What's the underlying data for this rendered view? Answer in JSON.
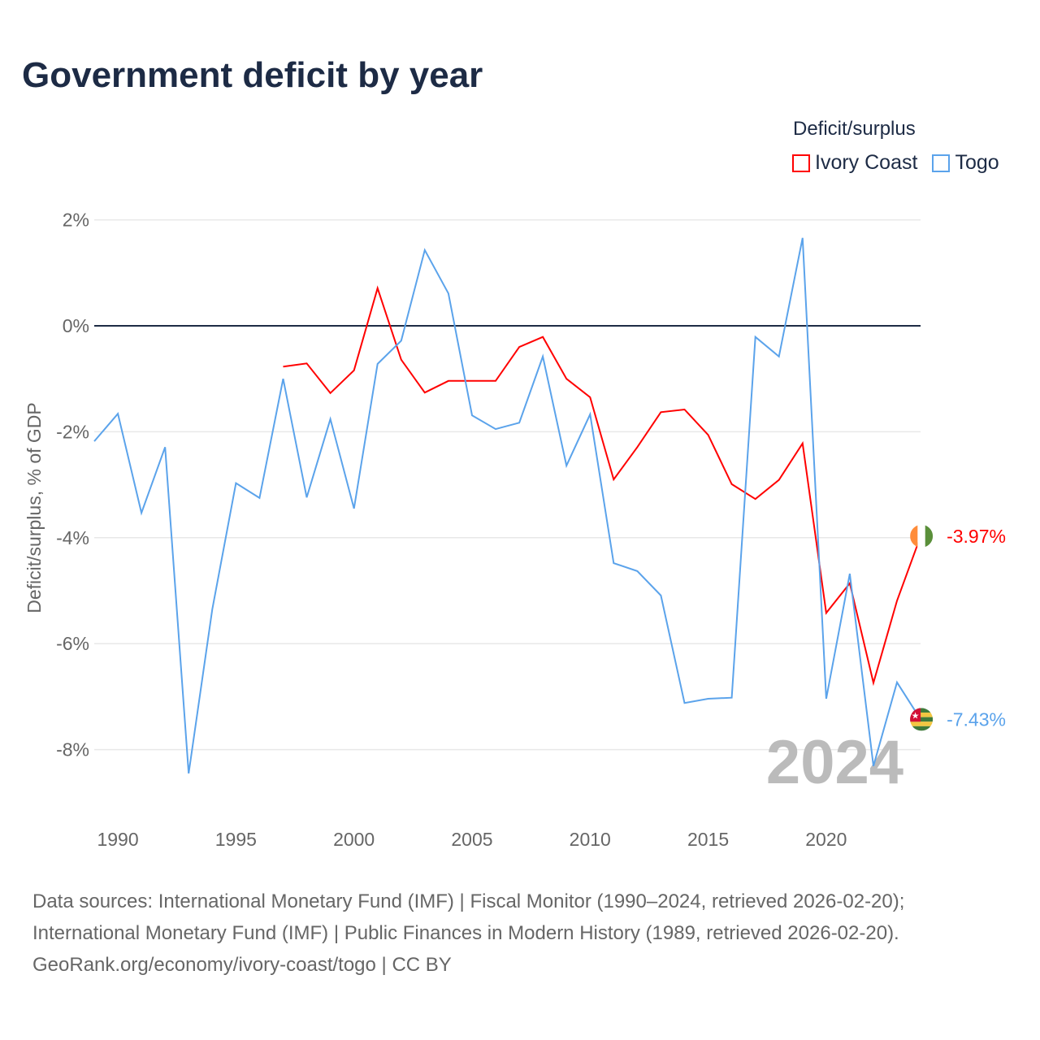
{
  "chart_data": {
    "type": "line",
    "title": "Government deficit by year",
    "xlabel": "",
    "ylabel": "Deficit/surplus, % of GDP",
    "xlim": [
      1989,
      2024
    ],
    "ylim": [
      -9,
      2
    ],
    "yticks": [
      2,
      0,
      -2,
      -4,
      -6,
      -8
    ],
    "ytick_labels": [
      "2%",
      "0%",
      "-2%",
      "-4%",
      "-6%",
      "-8%"
    ],
    "xticks": [
      1990,
      1995,
      2000,
      2005,
      2010,
      2015,
      2020
    ],
    "xtick_labels": [
      "1990",
      "1995",
      "2000",
      "2005",
      "2010",
      "2015",
      "2020"
    ],
    "grid": true,
    "legend_title": "Deficit/surplus",
    "legend_position": "top-right",
    "year_watermark": "2024",
    "series": [
      {
        "name": "Ivory Coast",
        "color": "#ff0000",
        "end_label": "-3.97%",
        "x": [
          1997,
          1998,
          1999,
          2000,
          2001,
          2002,
          2003,
          2004,
          2005,
          2006,
          2007,
          2008,
          2009,
          2010,
          2011,
          2012,
          2013,
          2014,
          2015,
          2016,
          2017,
          2018,
          2019,
          2020,
          2021,
          2022,
          2023,
          2024
        ],
        "values": [
          -0.77,
          -0.71,
          -1.27,
          -0.84,
          0.71,
          -0.64,
          -1.26,
          -1.04,
          -1.04,
          -1.04,
          -0.4,
          -0.21,
          -1.0,
          -1.35,
          -2.9,
          -2.29,
          -1.63,
          -1.58,
          -2.06,
          -2.99,
          -3.27,
          -2.91,
          -2.22,
          -5.42,
          -4.86,
          -6.74,
          -5.19,
          -3.97
        ]
      },
      {
        "name": "Togo",
        "color": "#5ba3eb",
        "end_label": "-7.43%",
        "x": [
          1989,
          1990,
          1991,
          1992,
          1993,
          1994,
          1995,
          1996,
          1997,
          1998,
          1999,
          2000,
          2001,
          2002,
          2003,
          2004,
          2005,
          2006,
          2007,
          2008,
          2009,
          2010,
          2011,
          2012,
          2013,
          2014,
          2015,
          2016,
          2017,
          2018,
          2019,
          2020,
          2021,
          2022,
          2023,
          2024
        ],
        "values": [
          -2.18,
          -1.66,
          -3.53,
          -2.29,
          -8.45,
          -5.35,
          -2.97,
          -3.25,
          -1.0,
          -3.24,
          -1.76,
          -3.45,
          -0.72,
          -0.28,
          1.43,
          0.61,
          -1.69,
          -1.95,
          -1.83,
          -0.58,
          -2.64,
          -1.67,
          -4.48,
          -4.63,
          -5.09,
          -7.12,
          -7.04,
          -7.02,
          -0.21,
          -0.58,
          1.66,
          -7.04,
          -4.68,
          -8.31,
          -6.73,
          -7.43
        ]
      }
    ]
  },
  "source": {
    "line1": "Data sources: International Monetary Fund (IMF) | Fiscal Monitor (1990–2024, retrieved 2026-02-20);",
    "line2": "International Monetary Fund (IMF) | Public Finances in Modern History (1989, retrieved 2026-02-20).",
    "line3": "GeoRank.org/economy/ivory-coast/togo | CC BY"
  }
}
